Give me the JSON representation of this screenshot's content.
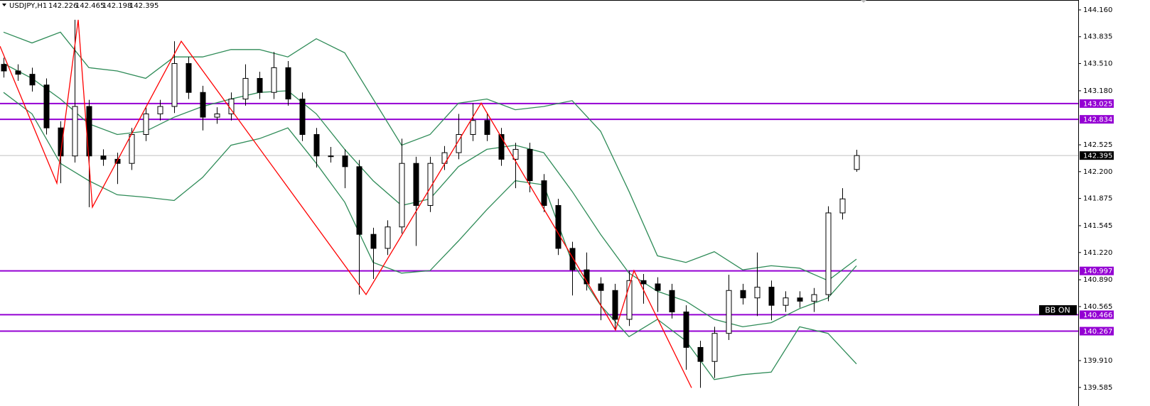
{
  "chart_data": {
    "type": "candlestick",
    "title": "USDJPY,H1",
    "up_color": "#ffffff",
    "down_color": "#000000",
    "open": [
      143.5,
      143.42,
      143.38,
      143.25,
      142.73,
      142.39,
      142.99,
      142.39,
      142.35,
      142.3,
      142.65,
      142.9,
      142.99,
      143.51,
      143.16,
      142.86,
      142.9,
      143.08,
      143.33,
      143.16,
      143.46,
      143.08,
      142.65,
      142.39,
      142.39,
      142.26,
      141.44,
      141.27,
      141.53,
      142.3,
      141.79,
      142.3,
      142.43,
      142.65,
      142.82,
      142.65,
      142.35,
      142.47,
      142.09,
      141.79,
      141.27,
      141.01,
      140.84,
      140.76,
      140.41,
      140.88,
      140.84,
      140.76,
      140.5,
      140.07,
      139.9,
      140.24,
      140.76,
      140.67,
      140.8,
      140.58,
      140.67,
      140.63,
      140.71,
      141.7,
      142.226
    ],
    "high": [
      143.58,
      143.5,
      143.46,
      143.33,
      142.81,
      144.04,
      143.07,
      142.47,
      142.43,
      142.73,
      142.98,
      143.07,
      143.78,
      143.59,
      143.24,
      142.98,
      143.16,
      143.5,
      143.41,
      143.65,
      143.54,
      143.16,
      142.73,
      142.5,
      142.47,
      142.34,
      141.52,
      141.61,
      142.6,
      142.38,
      142.38,
      142.51,
      142.9,
      143.03,
      142.9,
      142.73,
      142.55,
      142.55,
      142.17,
      141.87,
      141.35,
      141.22,
      140.92,
      140.84,
      141.0,
      140.96,
      140.92,
      140.84,
      140.58,
      140.15,
      140.32,
      140.95,
      140.84,
      141.22,
      140.88,
      140.75,
      140.75,
      140.79,
      141.78,
      142.0,
      142.465
    ],
    "low": [
      143.34,
      143.3,
      143.17,
      142.65,
      142.06,
      142.31,
      141.77,
      142.27,
      142.05,
      142.22,
      142.57,
      142.82,
      142.91,
      143.08,
      142.7,
      142.78,
      142.82,
      143.0,
      143.08,
      143.08,
      143.0,
      142.57,
      142.25,
      142.31,
      142.0,
      140.71,
      140.9,
      141.19,
      141.45,
      141.3,
      141.71,
      142.22,
      142.35,
      142.57,
      142.57,
      142.27,
      142.0,
      141.95,
      141.71,
      141.19,
      140.7,
      140.76,
      140.4,
      140.28,
      140.33,
      140.6,
      140.5,
      140.42,
      139.8,
      139.58,
      139.7,
      140.16,
      140.59,
      140.45,
      140.4,
      140.5,
      140.55,
      140.5,
      140.63,
      141.62,
      142.198
    ],
    "close": [
      143.42,
      143.38,
      143.25,
      142.73,
      142.39,
      142.99,
      142.39,
      142.35,
      142.3,
      142.65,
      142.9,
      142.99,
      143.51,
      143.16,
      142.86,
      142.9,
      143.08,
      143.33,
      143.16,
      143.46,
      143.08,
      142.65,
      142.39,
      142.39,
      142.26,
      141.44,
      141.27,
      141.53,
      142.3,
      141.79,
      142.3,
      142.43,
      142.65,
      142.82,
      142.65,
      142.35,
      142.47,
      142.09,
      141.79,
      141.27,
      141.01,
      140.84,
      140.76,
      140.41,
      140.88,
      140.84,
      140.76,
      140.5,
      140.07,
      139.9,
      140.24,
      140.76,
      140.67,
      140.8,
      140.58,
      140.67,
      140.63,
      140.71,
      141.7,
      141.87,
      142.395
    ],
    "bollinger": {
      "color": "#2e8b57",
      "x": [
        0,
        2,
        4,
        6,
        8,
        10,
        12,
        14,
        16,
        18,
        20,
        22,
        24,
        26,
        28,
        30,
        32,
        34,
        36,
        38,
        40,
        42,
        44,
        46,
        48,
        50,
        52,
        54,
        56,
        58,
        60
      ],
      "upper": [
        143.89,
        143.76,
        143.89,
        143.46,
        143.42,
        143.33,
        143.59,
        143.59,
        143.68,
        143.68,
        143.59,
        143.81,
        143.64,
        143.08,
        142.52,
        142.65,
        143.03,
        143.08,
        142.95,
        142.99,
        143.06,
        142.69,
        141.96,
        141.18,
        141.1,
        141.23,
        141.01,
        141.06,
        141.03,
        140.88,
        141.14
      ],
      "middle": [
        143.51,
        143.33,
        143.08,
        142.78,
        142.65,
        142.69,
        142.86,
        142.99,
        143.08,
        143.16,
        143.18,
        142.9,
        142.47,
        142.09,
        141.79,
        141.87,
        142.26,
        142.47,
        142.52,
        142.43,
        141.96,
        141.44,
        140.97,
        140.75,
        140.63,
        140.41,
        140.32,
        140.37,
        140.54,
        140.67,
        141.06
      ],
      "lower": [
        143.16,
        142.9,
        142.3,
        142.09,
        141.92,
        141.89,
        141.85,
        142.13,
        142.52,
        142.6,
        142.73,
        142.3,
        141.83,
        141.1,
        140.97,
        141.0,
        141.36,
        141.74,
        142.09,
        142.04,
        141.1,
        140.58,
        140.2,
        140.41,
        140.15,
        139.68,
        139.74,
        139.77,
        140.32,
        140.24,
        139.87
      ]
    },
    "zigzag": {
      "color": "#ff0000",
      "x": [
        -0.25,
        3.75,
        5.25,
        6.25,
        12.5,
        25.5,
        33.6,
        43.05,
        44.35,
        48.4
      ],
      "values": [
        143.72,
        142.06,
        144.04,
        141.77,
        143.78,
        140.71,
        143.03,
        140.28,
        141.0,
        139.58
      ]
    },
    "levels": {
      "color": "#9400d3",
      "values": [
        143.025,
        142.834,
        140.997,
        140.466,
        140.267
      ]
    },
    "annotation": "BB ON",
    "ylim": [
      139.36,
      144.28
    ],
    "yticks": [
      {
        "value": 144.16,
        "label": "144.160"
      },
      143.835,
      {
        "value": 143.51,
        "label": "143.510"
      },
      {
        "value": 143.18,
        "label": "143.180"
      },
      142.525,
      {
        "value": 142.2,
        "label": "142.200"
      },
      141.875,
      141.545,
      {
        "value": 141.22,
        "label": "141.220"
      },
      {
        "value": 140.89,
        "label": "140.890"
      },
      140.565,
      {
        "value": 139.91,
        "label": "139.910"
      },
      139.585
    ],
    "grid": false
  }
}
